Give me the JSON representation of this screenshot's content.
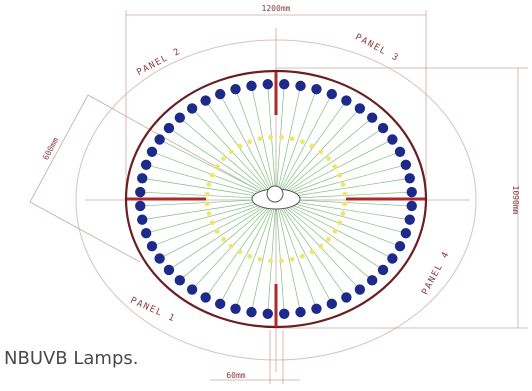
{
  "dimensions": {
    "width_top": "1200mm",
    "height_right": "1090mm",
    "diagonal_left": "600mm",
    "gap_bottom": "60mm"
  },
  "panels": {
    "panel_1": "PANEL 1",
    "panel_2": "PANEL 2",
    "panel_3": "PANEL 3",
    "panel_4": "PANEL 4"
  },
  "caption": "NBUVB Lamps.",
  "colors": {
    "lamp_blue": "#1e2a8a",
    "yellow_lamp": "#f0e46a",
    "panel_red": "#b0282a",
    "enclosure_brown": "#6a1f22",
    "dimension_line": "#c4a4a4",
    "ray_green": "#7fbf7f"
  },
  "lamps": {
    "outer_count": 52,
    "inner_count": 40
  }
}
